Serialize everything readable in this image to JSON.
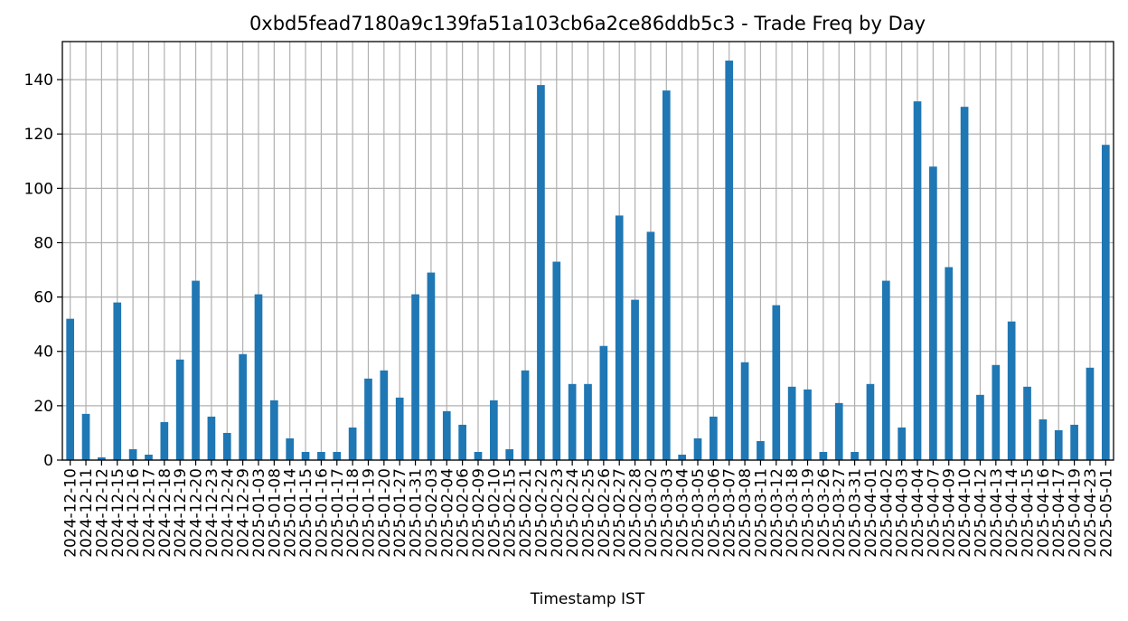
{
  "chart_data": {
    "type": "bar",
    "title": "0xbd5fead7180a9c139fa51a103cb6a2ce86ddb5c3 - Trade Freq by Day",
    "xlabel": "Timestamp IST",
    "ylabel": "",
    "ylim": [
      0,
      154
    ],
    "yticks": [
      0,
      20,
      40,
      60,
      80,
      100,
      120,
      140
    ],
    "grid": true,
    "legend": "none",
    "bar_color": "#1f77b4",
    "grid_color": "#b0b0b0",
    "categories": [
      "2024-12-10",
      "2024-12-11",
      "2024-12-12",
      "2024-12-15",
      "2024-12-16",
      "2024-12-17",
      "2024-12-18",
      "2024-12-19",
      "2024-12-20",
      "2024-12-23",
      "2024-12-24",
      "2024-12-29",
      "2025-01-03",
      "2025-01-08",
      "2025-01-14",
      "2025-01-15",
      "2025-01-16",
      "2025-01-17",
      "2025-01-18",
      "2025-01-19",
      "2025-01-20",
      "2025-01-27",
      "2025-01-31",
      "2025-02-03",
      "2025-02-04",
      "2025-02-06",
      "2025-02-09",
      "2025-02-10",
      "2025-02-15",
      "2025-02-21",
      "2025-02-22",
      "2025-02-23",
      "2025-02-24",
      "2025-02-25",
      "2025-02-26",
      "2025-02-27",
      "2025-02-28",
      "2025-03-02",
      "2025-03-03",
      "2025-03-04",
      "2025-03-05",
      "2025-03-06",
      "2025-03-07",
      "2025-03-08",
      "2025-03-11",
      "2025-03-12",
      "2025-03-18",
      "2025-03-19",
      "2025-03-26",
      "2025-03-27",
      "2025-03-31",
      "2025-04-01",
      "2025-04-02",
      "2025-04-03",
      "2025-04-04",
      "2025-04-07",
      "2025-04-09",
      "2025-04-10",
      "2025-04-12",
      "2025-04-13",
      "2025-04-14",
      "2025-04-15",
      "2025-04-16",
      "2025-04-17",
      "2025-04-19",
      "2025-04-23",
      "2025-05-01"
    ],
    "values": [
      52,
      17,
      1,
      58,
      4,
      2,
      14,
      37,
      66,
      16,
      10,
      39,
      61,
      22,
      8,
      3,
      3,
      3,
      12,
      30,
      33,
      23,
      61,
      69,
      18,
      13,
      3,
      22,
      4,
      33,
      138,
      73,
      28,
      28,
      42,
      90,
      59,
      84,
      136,
      2,
      8,
      16,
      147,
      36,
      7,
      57,
      27,
      26,
      3,
      21,
      3,
      28,
      66,
      12,
      132,
      108,
      71,
      130,
      24,
      35,
      51,
      27,
      15,
      11,
      13,
      34,
      116
    ]
  }
}
